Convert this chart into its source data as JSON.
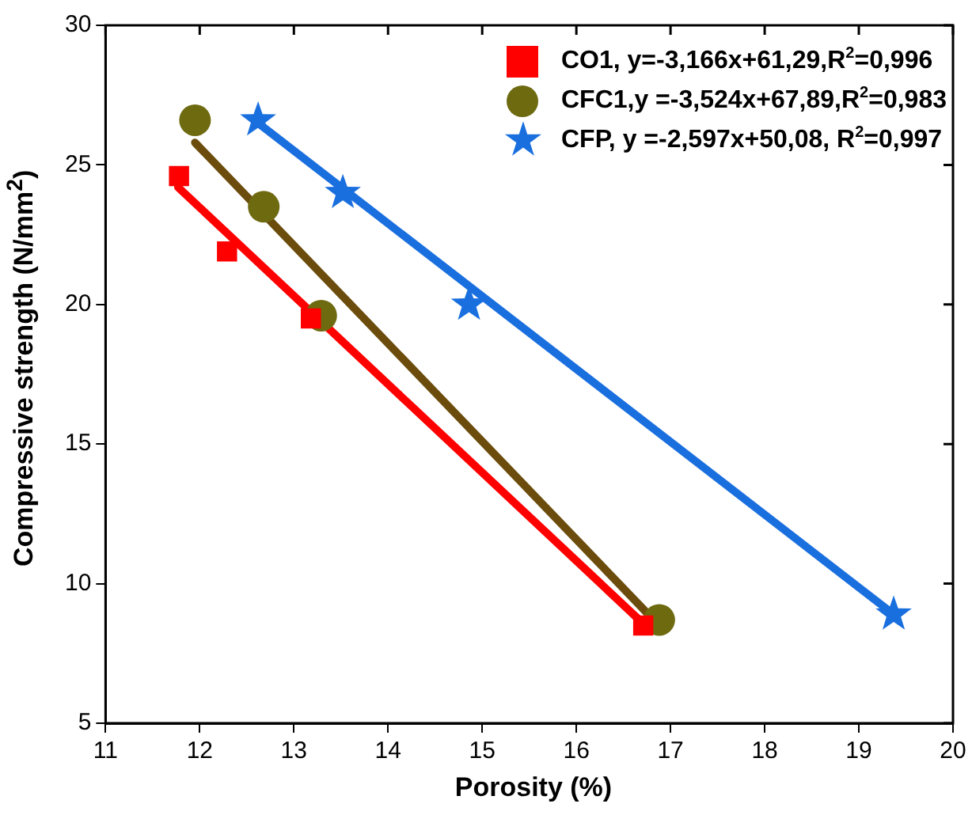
{
  "chart_data": {
    "type": "scatter",
    "xlabel": "Porosity (%)",
    "ylabel": "Compressive strength (N/mm$^{2}$)",
    "xlim": [
      11,
      20
    ],
    "xticks": [
      11,
      12,
      13,
      14,
      15,
      16,
      17,
      18,
      19,
      20
    ],
    "ylim": [
      5,
      30
    ],
    "yticks": [
      5,
      10,
      15,
      20,
      25,
      30
    ],
    "grid": false,
    "legend": "top right",
    "series": [
      {
        "name": "CO1, y=-3,166x+61,29,R$^{2}$=0,996",
        "type": "scatter",
        "marker": "square",
        "color": "#ff0000",
        "x": [
          11.78,
          12.29,
          13.18,
          16.71
        ],
        "values": [
          24.6,
          21.9,
          19.5,
          8.5
        ]
      },
      {
        "name": "CFC1,y =-3,524x+67,89,R$^{2}$=0,983",
        "type": "scatter",
        "marker": "circle",
        "color": "#6e6a10",
        "x": [
          11.95,
          12.68,
          13.29,
          16.88
        ],
        "values": [
          26.6,
          23.5,
          19.6,
          8.7
        ]
      },
      {
        "name": "CFP, y =-2,597x+50,08, R$^{2}$=0,997",
        "type": "scatter",
        "marker": "star",
        "color": "#1a6fdf",
        "x": [
          12.62,
          13.52,
          14.86,
          19.37
        ],
        "values": [
          26.6,
          24.0,
          20.0,
          8.9
        ]
      },
      {
        "type": "line",
        "marker": "none",
        "color": "#ff0000",
        "x": [
          11.77,
          16.7
        ],
        "values": [
          24.2,
          8.6
        ]
      },
      {
        "type": "line",
        "marker": "none",
        "color": "#6b4c0c",
        "x": [
          11.95,
          16.85
        ],
        "values": [
          25.8,
          8.6
        ]
      },
      {
        "type": "line",
        "marker": "none",
        "color": "#1a6fdf",
        "x": [
          12.62,
          19.37
        ],
        "values": [
          26.5,
          8.9
        ]
      }
    ]
  }
}
